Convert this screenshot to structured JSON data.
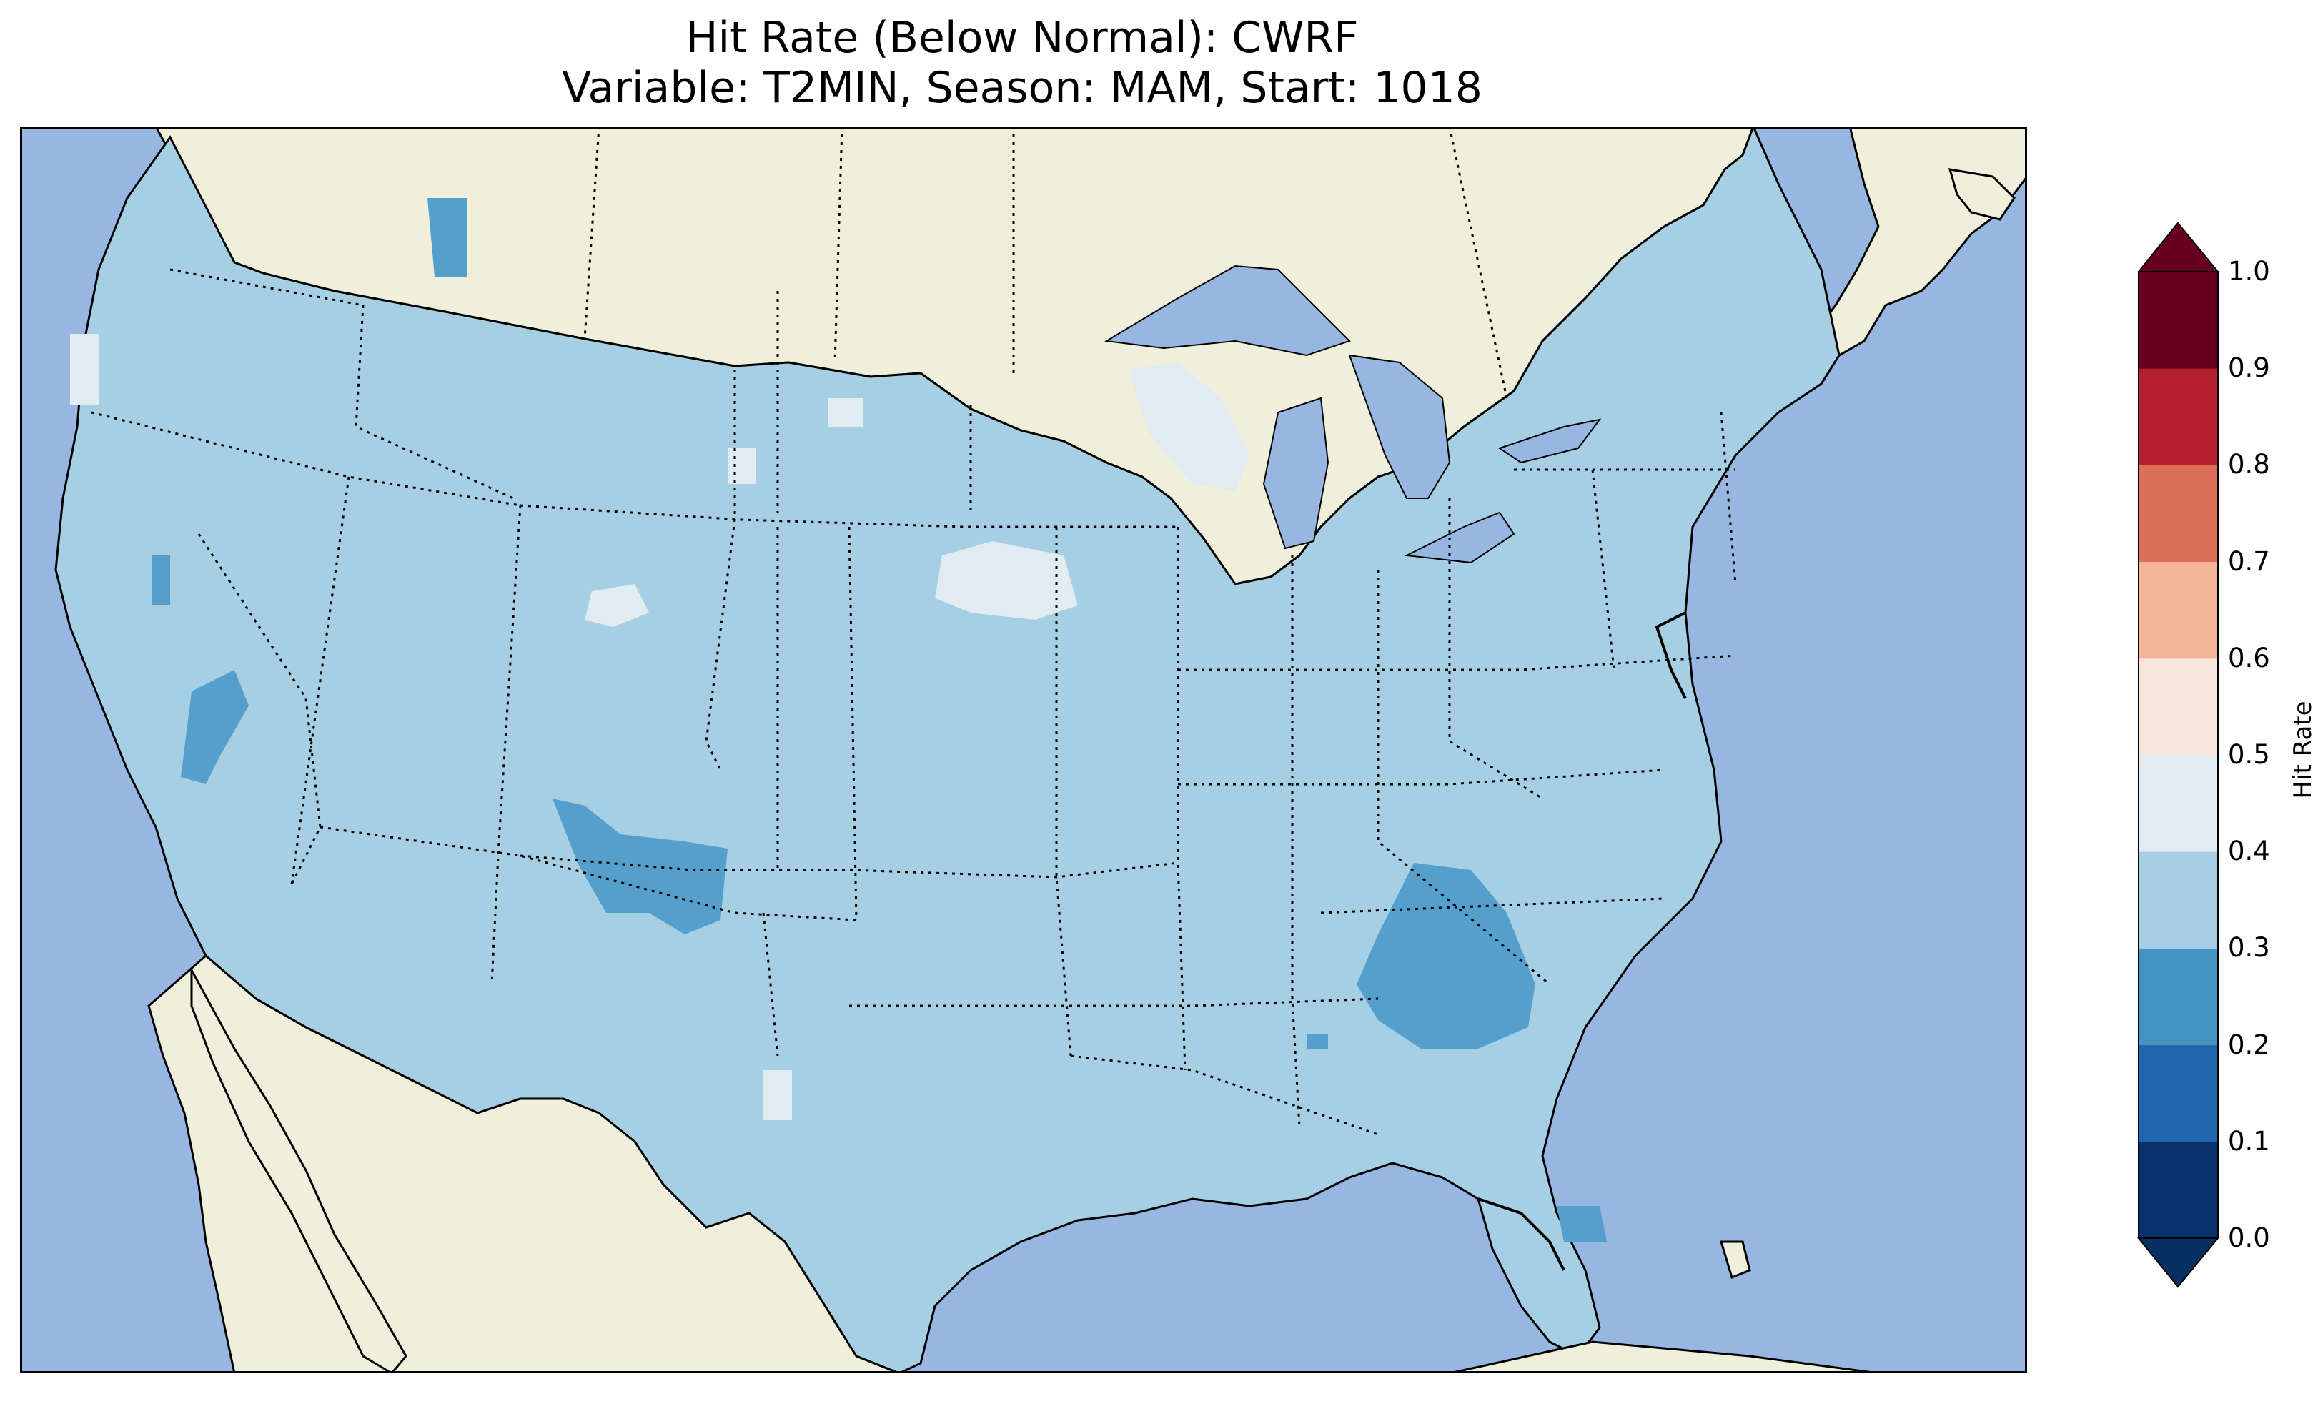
{
  "title": {
    "line1": "Hit Rate (Below Normal): CWRF",
    "line2": "Variable: T2MIN, Season: MAM, Start: 1018"
  },
  "colors": {
    "ocean": "#97b6e1",
    "land": "#efefdb",
    "field_base": "#a7cfe4",
    "field_low": "#559fcc",
    "field_light": "#e1ebf2"
  },
  "colorbar": {
    "label": "Hit Rate",
    "ticks": [
      "0.0",
      "0.1",
      "0.2",
      "0.3",
      "0.4",
      "0.5",
      "0.6",
      "0.7",
      "0.8",
      "0.9",
      "1.0"
    ],
    "bins": [
      {
        "range": [
          0.0,
          0.1
        ],
        "color": "#08306b"
      },
      {
        "range": [
          0.1,
          0.2
        ],
        "color": "#2166ac"
      },
      {
        "range": [
          0.2,
          0.3
        ],
        "color": "#4393c3"
      },
      {
        "range": [
          0.3,
          0.4
        ],
        "color": "#a6cde3"
      },
      {
        "range": [
          0.4,
          0.5
        ],
        "color": "#e1ebf2"
      },
      {
        "range": [
          0.5,
          0.6
        ],
        "color": "#f7e6dd"
      },
      {
        "range": [
          0.6,
          0.7
        ],
        "color": "#f4b597"
      },
      {
        "range": [
          0.7,
          0.8
        ],
        "color": "#dc6f59"
      },
      {
        "range": [
          0.8,
          0.9
        ],
        "color": "#b4202d"
      },
      {
        "range": [
          0.9,
          1.0
        ],
        "color": "#67001f"
      }
    ],
    "extend_min_color": "#053061",
    "extend_max_color": "#67001f"
  }
}
